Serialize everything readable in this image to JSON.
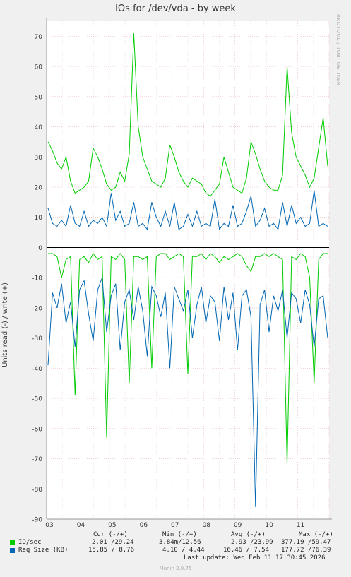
{
  "chart_data": {
    "type": "line",
    "title": "IOs for /dev/vda - by week",
    "ylabel": "Units read (-) / write (+)",
    "side_label": "RRDTOOL / TOBI OETIKER",
    "ylim": [
      -90,
      75
    ],
    "yticks": [
      70,
      60,
      50,
      40,
      30,
      20,
      10,
      0,
      -10,
      -20,
      -30,
      -40,
      -50,
      -60,
      -70,
      -80,
      -90
    ],
    "x_tick_labels": [
      "03",
      "04",
      "05",
      "06",
      "07",
      "08",
      "09",
      "10",
      "11"
    ],
    "grid": true,
    "series": [
      {
        "name": "IO/sec",
        "color": "#00cc00",
        "write_values": [
          35,
          32,
          28,
          26,
          30,
          22,
          18,
          19,
          20,
          22,
          33,
          30,
          26,
          21,
          19,
          20,
          25,
          22,
          31,
          71,
          40,
          30,
          26,
          22,
          21,
          20,
          23,
          34,
          30,
          25,
          22,
          20,
          23,
          22,
          21,
          18,
          17,
          19,
          21,
          30,
          25,
          20,
          19,
          18,
          23,
          35,
          31,
          26,
          22,
          20,
          19,
          19,
          24,
          60,
          38,
          30,
          27,
          24,
          20,
          23,
          33,
          43,
          27
        ],
        "read_values": [
          -2,
          -2,
          -3,
          -10,
          -4,
          -3,
          -49,
          -4,
          -3,
          -5,
          -2,
          -4,
          -3,
          -63,
          -3,
          -4,
          -2,
          -4,
          -45,
          -3,
          -3,
          -4,
          -3,
          -40,
          -3,
          -2,
          -2,
          -4,
          -3,
          -2,
          -3,
          -42,
          -3,
          -3,
          -2,
          -4,
          -2,
          -3,
          -5,
          -3,
          -4,
          -3,
          -2,
          -3,
          -6,
          -8,
          -3,
          -3,
          -2,
          -3,
          -2,
          -3,
          -4,
          -72,
          -3,
          -4,
          -2,
          -3,
          -10,
          -45,
          -4,
          -2,
          -2
        ]
      },
      {
        "name": "Req Size (KB)",
        "color": "#0066b3",
        "write_values": [
          13,
          8,
          7,
          9,
          7,
          14,
          8,
          7,
          12,
          7,
          9,
          8,
          10,
          7,
          18,
          9,
          12,
          7,
          8,
          15,
          7,
          8,
          6,
          15,
          10,
          7,
          12,
          7,
          15,
          6,
          7,
          11,
          7,
          12,
          7,
          8,
          7,
          16,
          6,
          8,
          7,
          14,
          7,
          8,
          12,
          17,
          7,
          9,
          13,
          7,
          8,
          6,
          15,
          7,
          14,
          8,
          10,
          7,
          8,
          19,
          7,
          8,
          7
        ],
        "read_values": [
          -39,
          -15,
          -20,
          -12,
          -25,
          -18,
          -33,
          -14,
          -11,
          -22,
          -31,
          -14,
          -10,
          -28,
          -16,
          -12,
          -34,
          -18,
          -14,
          -24,
          -13,
          -21,
          -36,
          -13,
          -16,
          -23,
          -15,
          -40,
          -13,
          -17,
          -21,
          -14,
          -30,
          -19,
          -13,
          -25,
          -16,
          -18,
          -31,
          -13,
          -24,
          -15,
          -34,
          -16,
          -14,
          -23,
          -86,
          -19,
          -14,
          -28,
          -16,
          -21,
          -14,
          -30,
          -15,
          -17,
          -25,
          -14,
          -19,
          -33,
          -17,
          -16,
          -30
        ]
      }
    ],
    "legend": {
      "headers": [
        "Cur (-/+)",
        "Min (-/+)",
        "Avg (-/+)",
        "Max (-/+)"
      ],
      "rows": [
        {
          "name": "IO/sec",
          "cur": "2.01 /29.24",
          "min": "3.84m/12.56",
          "avg": "2.93 /23.99",
          "max": "377.19 /59.47"
        },
        {
          "name": "Req Size (KB)",
          "cur": "15.85 / 8.76",
          "min": "4.10 / 4.44",
          "avg": "16.46 / 7.54",
          "max": "177.72 /76.39"
        }
      ]
    },
    "last_update": "Last update: Wed Feb 11 17:30:45 2026",
    "footer": "Munin 2.0.75"
  }
}
